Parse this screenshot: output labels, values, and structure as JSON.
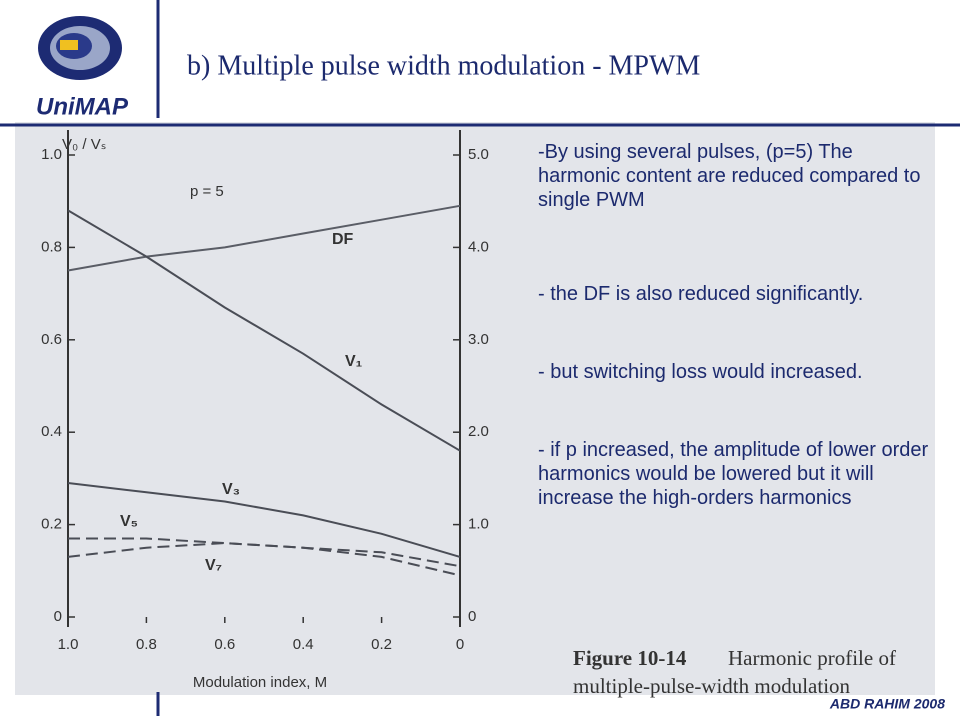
{
  "slide": {
    "logo": "UniMAP",
    "title": "b) Multiple pulse width modulation - MPWM",
    "bullets": [
      "-By using several pulses, (p=5) The harmonic content are reduced compared to single PWM",
      "- the DF is also reduced significantly.",
      "- but switching loss would increased.",
      "- if p increased, the amplitude of lower order harmonics would be lowered but it will increase the high-orders harmonics"
    ],
    "footer": "ABD RAHIM 2008"
  },
  "chart_data": {
    "type": "line",
    "y_label": "V₀ / Vₛ",
    "x_label": "Modulation index, M",
    "annotation": "p = 5",
    "caption_number": "Figure 10-14",
    "caption": [
      "Harmonic profile of",
      "multiple-pulse-width modulation"
    ],
    "x": [
      1,
      0.8,
      0.6,
      0.4,
      0.2,
      0
    ],
    "xlim": [
      1,
      0
    ],
    "xticks": [
      {
        "value": 1,
        "label": "1.0"
      },
      0.8,
      0.6,
      0.4,
      0.2,
      0
    ],
    "ylim": [
      0,
      1
    ],
    "yticks": [
      0,
      0.2,
      0.4,
      0.6,
      0.8,
      {
        "value": 1,
        "label": "1.0"
      }
    ],
    "y2lim": [
      0,
      5
    ],
    "y2ticks": [
      0,
      {
        "value": 1,
        "label": "1.0"
      },
      {
        "value": 2,
        "label": "2.0"
      },
      {
        "value": 3,
        "label": "3.0"
      },
      {
        "value": 4,
        "label": "4.0"
      },
      {
        "value": 5,
        "label": "5.0"
      }
    ],
    "series": [
      {
        "name": "DF",
        "color": "#5a5d66",
        "dash": false,
        "values": [
          0.75,
          0.78,
          0.8,
          0.83,
          0.86,
          0.89
        ]
      },
      {
        "name": "V₁",
        "color": "#4a4d56",
        "dash": false,
        "values": [
          0.88,
          0.78,
          0.67,
          0.57,
          0.46,
          0.36
        ]
      },
      {
        "name": "V₃",
        "color": "#4a4d56",
        "dash": false,
        "values": [
          0.29,
          0.27,
          0.25,
          0.22,
          0.18,
          0.13
        ]
      },
      {
        "name": "V₅",
        "color": "#4a4d56",
        "dash": true,
        "values": [
          0.17,
          0.17,
          0.16,
          0.15,
          0.14,
          0.11
        ]
      },
      {
        "name": "V₇",
        "color": "#4a4d56",
        "dash": true,
        "values": [
          0.13,
          0.15,
          0.16,
          0.15,
          0.13,
          0.09
        ]
      }
    ]
  }
}
